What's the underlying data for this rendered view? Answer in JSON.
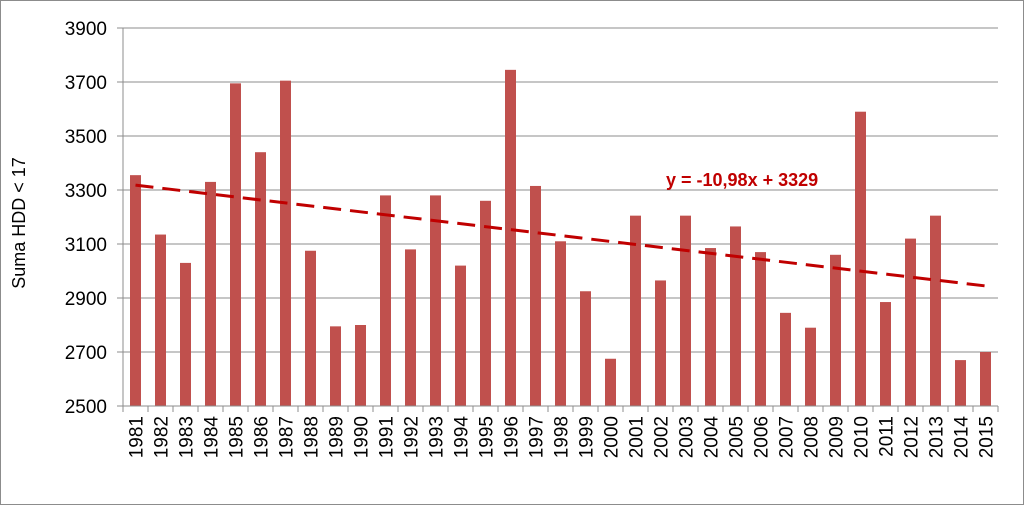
{
  "chart_data": {
    "type": "bar",
    "title": "",
    "xlabel": "",
    "ylabel": "Suma HDD < 17",
    "ylim": [
      2500,
      3900
    ],
    "yticks": [
      2500,
      2700,
      2900,
      3100,
      3300,
      3500,
      3700,
      3900
    ],
    "grid": true,
    "legend": "none",
    "bar_color": "#c0504d",
    "categories": [
      "1981",
      "1982",
      "1983",
      "1984",
      "1985",
      "1986",
      "1987",
      "1988",
      "1989",
      "1990",
      "1991",
      "1992",
      "1993",
      "1994",
      "1995",
      "1996",
      "1997",
      "1998",
      "1999",
      "2000",
      "2001",
      "2002",
      "2003",
      "2004",
      "2005",
      "2006",
      "2007",
      "2008",
      "2009",
      "2010",
      "2011",
      "2012",
      "2013",
      "2014",
      "2015"
    ],
    "values": [
      3355,
      3135,
      3030,
      3330,
      3695,
      3440,
      3705,
      3075,
      2795,
      2800,
      3280,
      3080,
      3280,
      3020,
      3260,
      3745,
      3315,
      3110,
      2925,
      2675,
      3205,
      2965,
      3205,
      3085,
      3165,
      3070,
      2845,
      2790,
      3060,
      3590,
      2885,
      3120,
      3205,
      2670,
      2700
    ],
    "trendline": {
      "label": "y = -10,98x + 3329",
      "slope": -10.98,
      "intercept": 3329,
      "color": "#c00000",
      "style": "dashed"
    }
  }
}
